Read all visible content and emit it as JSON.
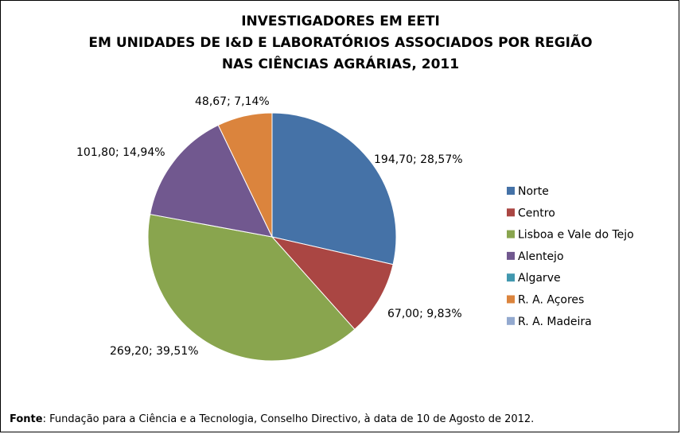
{
  "chart_data": {
    "type": "pie",
    "title_lines": [
      "INVESTIGADORES EM EETI",
      "EM UNIDADES DE I&D E LABORATÓRIOS ASSOCIADOS POR REGIÃO",
      "NAS CIÊNCIAS AGRÁRIAS, 2011"
    ],
    "legend_position": "right",
    "slices": [
      {
        "name": "Norte",
        "value": 194.7,
        "label": "194,70; 28,57%",
        "color": "#4572A7"
      },
      {
        "name": "Centro",
        "value": 67.0,
        "label": "67,00; 9,83%",
        "color": "#AA4643"
      },
      {
        "name": "Lisboa e Vale do Tejo",
        "value": 269.2,
        "label": "269,20; 39,51%",
        "color": "#89A54E"
      },
      {
        "name": "Alentejo",
        "value": 101.8,
        "label": "101,80; 14,94%",
        "color": "#71588F"
      },
      {
        "name": "Algarve",
        "value": 0,
        "label": "",
        "color": "#4198AF"
      },
      {
        "name": "R. A. Açores",
        "value": 48.67,
        "label": "48,67; 7,14%",
        "color": "#DB843D"
      },
      {
        "name": "R. A. Madeira",
        "value": 0,
        "label": "",
        "color": "#93A9CF"
      }
    ]
  },
  "source": {
    "prefix": "Fonte",
    "text": ": Fundação para a Ciência e a Tecnologia, Conselho Directivo, à data de 10 de Agosto de 2012."
  }
}
